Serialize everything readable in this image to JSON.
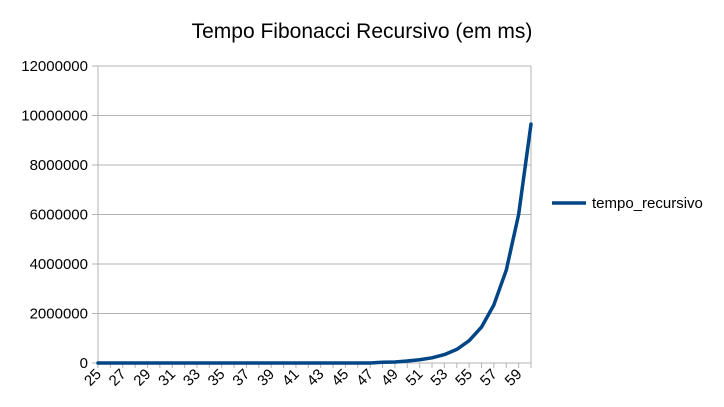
{
  "chart_data": {
    "type": "line",
    "title": "Tempo Fibonacci Recursivo (em ms)",
    "xlabel": "",
    "ylabel": "",
    "ylim": [
      0,
      12000000
    ],
    "yticks": [
      0,
      2000000,
      4000000,
      6000000,
      8000000,
      10000000,
      12000000
    ],
    "x": [
      25,
      26,
      27,
      28,
      29,
      30,
      31,
      32,
      33,
      34,
      35,
      36,
      37,
      38,
      39,
      40,
      41,
      42,
      43,
      44,
      45,
      46,
      47,
      48,
      49,
      50,
      51,
      52,
      53,
      54,
      55,
      56,
      57,
      58,
      59,
      60
    ],
    "xtick_labels": [
      "25",
      "27",
      "29",
      "31",
      "33",
      "35",
      "37",
      "39",
      "41",
      "43",
      "45",
      "47",
      "49",
      "51",
      "53",
      "55",
      "57",
      "59"
    ],
    "series": [
      {
        "name": "tempo_recursivo",
        "color": "#004586",
        "values": [
          0,
          0,
          0,
          0,
          0,
          0,
          0,
          0,
          0,
          0,
          0,
          0,
          0,
          0,
          0,
          0,
          0,
          0,
          0,
          0,
          0,
          0,
          0,
          30000,
          40000,
          80000,
          130000,
          210000,
          340000,
          550000,
          900000,
          1450000,
          2350000,
          3750000,
          6000000,
          9650000
        ]
      }
    ],
    "grid": true,
    "legend": "right"
  }
}
